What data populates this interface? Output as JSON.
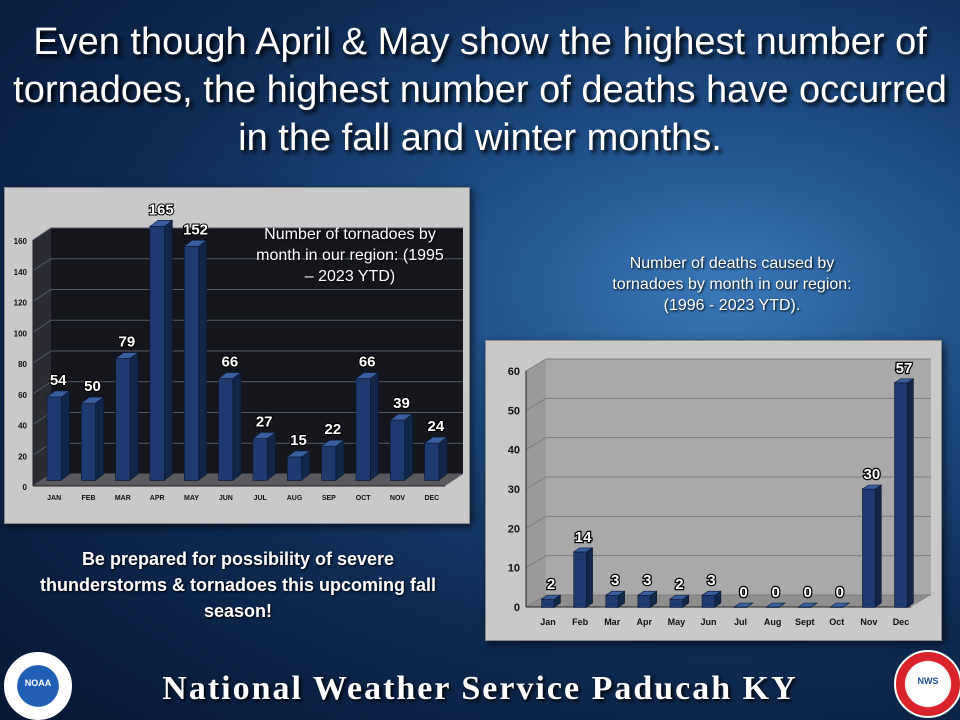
{
  "headline": "Even though April & May show the highest number of tornadoes, the highest number of deaths have occurred in the fall and winter months.",
  "callout": "Be prepared for possibility of severe thunderstorms & tornadoes this upcoming fall season!",
  "footer": "National Weather Service Paducah KY",
  "logos": {
    "noaa": "NOAA",
    "nws": "NWS"
  },
  "colors": {
    "bar": "#1f3a6e",
    "bar_side": "#12264a",
    "bar_top": "#3a5fa0"
  },
  "chart_data": [
    {
      "type": "bar",
      "title": "Number of tornadoes by month in our region: (1995 – 2023 YTD)",
      "categories": [
        "JAN",
        "FEB",
        "MAR",
        "APR",
        "MAY",
        "JUN",
        "JUL",
        "AUG",
        "SEP",
        "OCT",
        "NOV",
        "DEC"
      ],
      "values": [
        54,
        50,
        79,
        165,
        152,
        66,
        27,
        15,
        22,
        66,
        39,
        24
      ],
      "yticks": [
        0,
        20,
        40,
        60,
        80,
        100,
        120,
        140,
        160
      ],
      "ylim": [
        0,
        160
      ]
    },
    {
      "type": "bar",
      "title": "Number of deaths caused by tornadoes by month in our region: (1996 - 2023 YTD).",
      "categories": [
        "Jan",
        "Feb",
        "Mar",
        "Apr",
        "May",
        "Jun",
        "Jul",
        "Aug",
        "Sept",
        "Oct",
        "Nov",
        "Dec"
      ],
      "values": [
        2,
        14,
        3,
        3,
        2,
        3,
        0,
        0,
        0,
        0,
        30,
        57
      ],
      "yticks": [
        0,
        10,
        20,
        30,
        40,
        50,
        60
      ],
      "ylim": [
        0,
        60
      ]
    }
  ]
}
